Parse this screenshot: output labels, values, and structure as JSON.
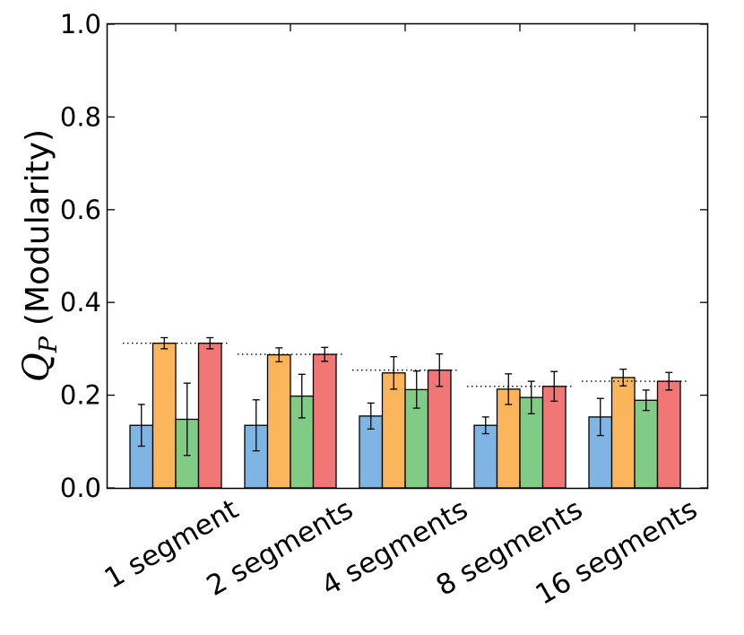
{
  "chart_data": {
    "type": "bar",
    "title": "",
    "xlabel": "",
    "ylabel": {
      "symbol": "Q",
      "subscript": "P",
      "text": "(Modularity)"
    },
    "ylim": [
      0.0,
      1.0
    ],
    "yticks": [
      "0.0",
      "0.2",
      "0.4",
      "0.6",
      "0.8",
      "1.0"
    ],
    "grid": false,
    "legend": "none",
    "categories": [
      "1 segment",
      "2 segments",
      "4 segments",
      "8 segments",
      "16 segments"
    ],
    "series": [
      {
        "color": "#7eb5e2",
        "values": [
          0.135,
          0.135,
          0.155,
          0.135,
          0.153
        ],
        "errors": [
          0.045,
          0.055,
          0.028,
          0.018,
          0.04
        ]
      },
      {
        "color": "#fbb55c",
        "values": [
          0.312,
          0.287,
          0.248,
          0.213,
          0.238
        ],
        "errors": [
          0.012,
          0.015,
          0.035,
          0.033,
          0.018
        ]
      },
      {
        "color": "#80cc84",
        "values": [
          0.148,
          0.198,
          0.212,
          0.195,
          0.189
        ],
        "errors": [
          0.078,
          0.047,
          0.04,
          0.035,
          0.022
        ]
      },
      {
        "color": "#f17676",
        "values": [
          0.312,
          0.288,
          0.254,
          0.219,
          0.23
        ],
        "errors": [
          0.012,
          0.015,
          0.035,
          0.032,
          0.019
        ]
      }
    ],
    "reference_lines": [
      0.312,
      0.288,
      0.254,
      0.219,
      0.23
    ],
    "reference_style": "dotted"
  }
}
